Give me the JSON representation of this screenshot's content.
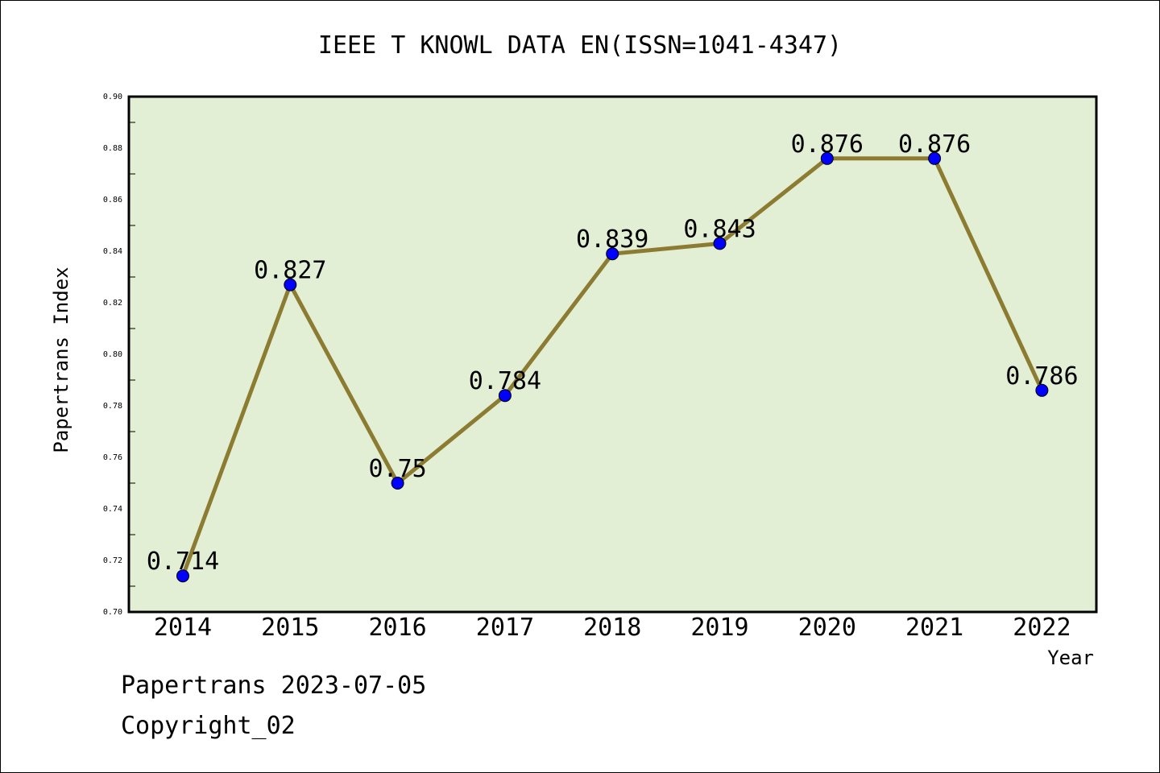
{
  "chart_data": {
    "type": "line",
    "title": "IEEE T KNOWL DATA EN(ISSN=1041-4347)",
    "xlabel": "Year",
    "ylabel": "Papertrans Index",
    "categories": [
      "2014",
      "2015",
      "2016",
      "2017",
      "2018",
      "2019",
      "2020",
      "2021",
      "2022"
    ],
    "values": [
      0.714,
      0.827,
      0.75,
      0.784,
      0.839,
      0.843,
      0.876,
      0.876,
      0.786
    ],
    "data_labels": [
      "0.714",
      "0.827",
      "0.75",
      "0.784",
      "0.839",
      "0.843",
      "0.876",
      "0.876",
      "0.786"
    ],
    "ylim": [
      0.7,
      0.9
    ],
    "y_ticks": [
      "0.70",
      "0.72",
      "0.74",
      "0.76",
      "0.78",
      "0.80",
      "0.82",
      "0.84",
      "0.86",
      "0.88",
      "0.90"
    ],
    "grid": false,
    "colors": {
      "plot_background": "#e2efd5",
      "line": "#8c7c32",
      "marker": "#0000ff"
    }
  },
  "footer": {
    "line1": "Papertrans 2023-07-05",
    "line2": "Copyright_02"
  }
}
